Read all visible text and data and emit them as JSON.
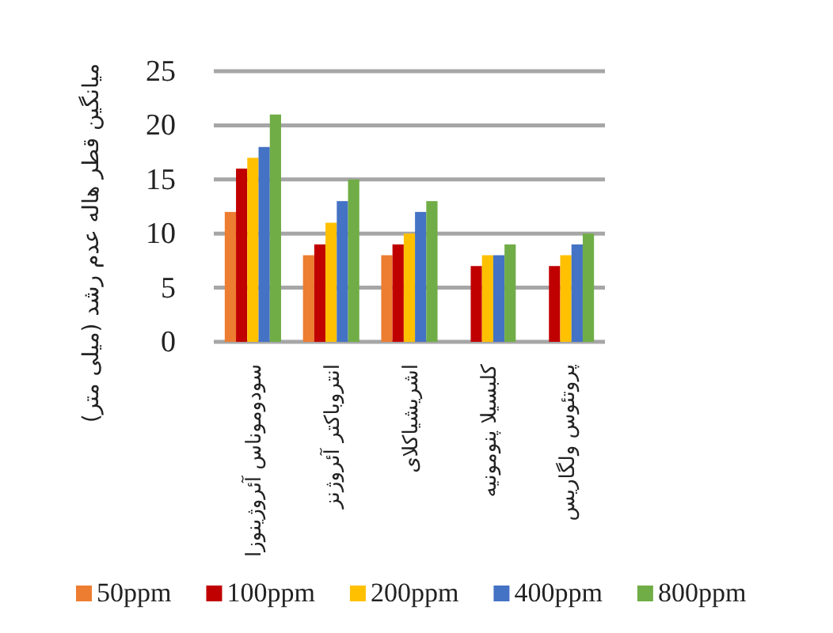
{
  "chart_data": {
    "type": "bar",
    "ylabel": "میانگین قطر هاله عدم رشد (میلی متر)",
    "categories": [
      "سودوموناس آئروژینوزا",
      "انتروباکتر آئروژنز",
      "اشریشیاکلای",
      "کلبسیلا پنومونیه",
      "پروتئوس ولگاریس"
    ],
    "series": [
      {
        "name": "50ppm",
        "color": "#ed7d31",
        "values": [
          12,
          8,
          8,
          0,
          0
        ]
      },
      {
        "name": "100ppm",
        "color": "#c00000",
        "values": [
          16,
          9,
          9,
          7,
          7
        ]
      },
      {
        "name": "200ppm",
        "color": "#ffc000",
        "values": [
          17,
          11,
          10,
          8,
          8
        ]
      },
      {
        "name": "400ppm",
        "color": "#4472c4",
        "values": [
          18,
          13,
          12,
          8,
          9
        ]
      },
      {
        "name": "800ppm",
        "color": "#70ad47",
        "values": [
          21,
          15,
          13,
          9,
          10
        ]
      }
    ],
    "ylim": [
      0,
      25
    ],
    "yticks": [
      0,
      5,
      10,
      15,
      20,
      25
    ],
    "grid": "y",
    "legend": "bottom"
  }
}
